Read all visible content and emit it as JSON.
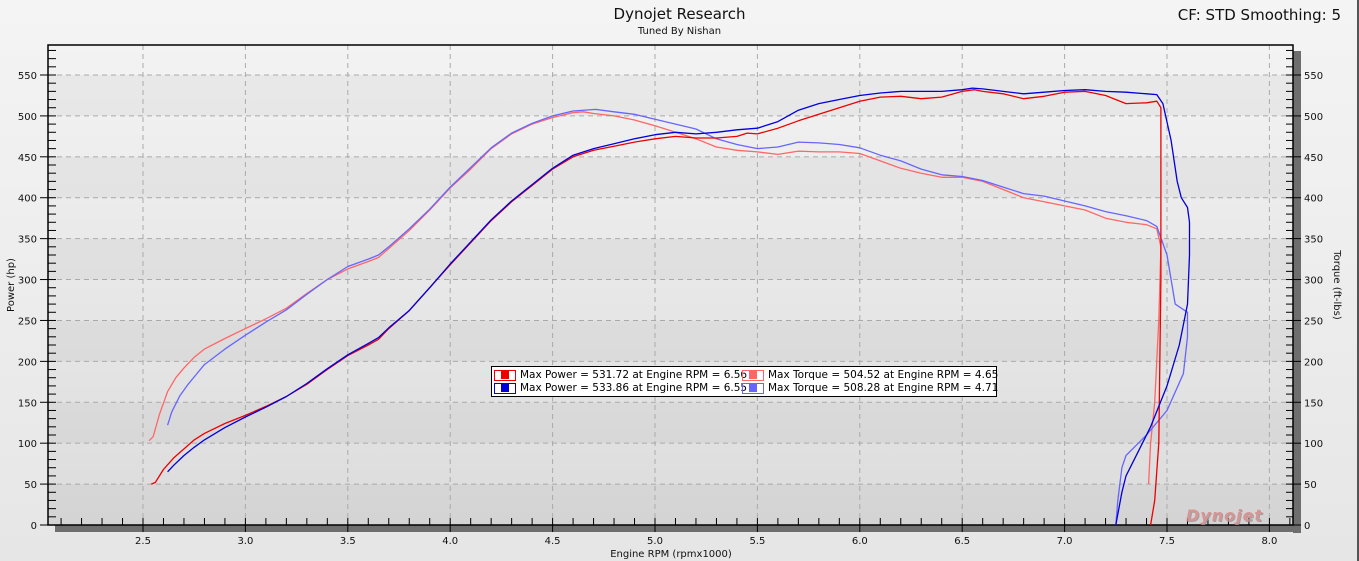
{
  "header": {
    "title": "Dynojet Research",
    "subtitle": "Tuned By Nishan",
    "cf_text": "CF: STD Smoothing: 5"
  },
  "colors": {
    "power_run1": "#ee0000",
    "power_run2": "#0000dd",
    "torque_run1": "#ff6666",
    "torque_run2": "#6666ff",
    "grid": "#aaaaaa",
    "frame_shadow": "#6e6e6e"
  },
  "legend": [
    {
      "label": "Max Power = 531.72 at Engine RPM = 6.56",
      "swatch": "#ee0000",
      "border": "#ee0000"
    },
    {
      "label": "Max Power = 533.86 at Engine RPM = 6.55",
      "swatch": "#0000dd",
      "border": "#0000dd"
    },
    {
      "label": "Max Torque = 504.52 at Engine RPM = 4.65",
      "swatch": "#ff6666",
      "border": "#ff6666"
    },
    {
      "label": "Max Torque = 508.28 at Engine RPM = 4.71",
      "swatch": "#6666ff",
      "border": "#6666ff"
    }
  ],
  "logo": "Dynojet",
  "chart_data": {
    "type": "line",
    "title": "Dynojet Research",
    "subtitle": "Tuned By Nishan",
    "annotation": "CF: STD Smoothing: 5",
    "xlabel": "Engine RPM (rpmx1000)",
    "ylabel": "Power (hp)",
    "y2label": "Torque (ft-lbs)",
    "xlim": [
      2.0,
      8.1
    ],
    "ylim": [
      0,
      580
    ],
    "y2lim": [
      0,
      580
    ],
    "xticks": [
      "2.5",
      "3.0",
      "3.5",
      "4.0",
      "4.5",
      "5.0",
      "5.5",
      "6.0",
      "6.5",
      "7.0",
      "7.5",
      "8.0"
    ],
    "yticks": [
      "0",
      "50",
      "100",
      "150",
      "200",
      "250",
      "300",
      "350",
      "400",
      "450",
      "500",
      "550"
    ],
    "grid": true,
    "legend_position": "center",
    "series": [
      {
        "name": "Max Power = 531.72 at Engine RPM = 6.56",
        "axis": "left",
        "color": "#ee0000",
        "points": [
          [
            2.54,
            50
          ],
          [
            2.56,
            52
          ],
          [
            2.6,
            68
          ],
          [
            2.65,
            82
          ],
          [
            2.7,
            93
          ],
          [
            2.75,
            104
          ],
          [
            2.8,
            112
          ],
          [
            2.9,
            124
          ],
          [
            3.0,
            134
          ],
          [
            3.1,
            145
          ],
          [
            3.2,
            157
          ],
          [
            3.3,
            172
          ],
          [
            3.4,
            190
          ],
          [
            3.5,
            207
          ],
          [
            3.6,
            220
          ],
          [
            3.65,
            227
          ],
          [
            3.7,
            240
          ],
          [
            3.8,
            262
          ],
          [
            3.9,
            290
          ],
          [
            4.0,
            318
          ],
          [
            4.1,
            345
          ],
          [
            4.2,
            372
          ],
          [
            4.3,
            395
          ],
          [
            4.4,
            415
          ],
          [
            4.5,
            435
          ],
          [
            4.6,
            450
          ],
          [
            4.7,
            458
          ],
          [
            4.8,
            463
          ],
          [
            4.9,
            468
          ],
          [
            5.0,
            472
          ],
          [
            5.1,
            475
          ],
          [
            5.2,
            473
          ],
          [
            5.3,
            473
          ],
          [
            5.4,
            475
          ],
          [
            5.45,
            479
          ],
          [
            5.5,
            478
          ],
          [
            5.6,
            485
          ],
          [
            5.7,
            494
          ],
          [
            5.8,
            502
          ],
          [
            5.9,
            510
          ],
          [
            6.0,
            518
          ],
          [
            6.1,
            523
          ],
          [
            6.2,
            524
          ],
          [
            6.3,
            521
          ],
          [
            6.4,
            523
          ],
          [
            6.5,
            530
          ],
          [
            6.56,
            532
          ],
          [
            6.6,
            530
          ],
          [
            6.7,
            527
          ],
          [
            6.8,
            521
          ],
          [
            6.9,
            524
          ],
          [
            7.0,
            529
          ],
          [
            7.1,
            530
          ],
          [
            7.2,
            525
          ],
          [
            7.3,
            515
          ],
          [
            7.4,
            516
          ],
          [
            7.45,
            518
          ],
          [
            7.47,
            510
          ],
          [
            7.47,
            300
          ],
          [
            7.46,
            100
          ],
          [
            7.44,
            30
          ],
          [
            7.42,
            0
          ]
        ]
      },
      {
        "name": "Max Power = 533.86 at Engine RPM = 6.55",
        "axis": "left",
        "color": "#0000dd",
        "points": [
          [
            2.62,
            65
          ],
          [
            2.65,
            73
          ],
          [
            2.7,
            85
          ],
          [
            2.75,
            95
          ],
          [
            2.8,
            104
          ],
          [
            2.9,
            119
          ],
          [
            3.0,
            132
          ],
          [
            3.1,
            144
          ],
          [
            3.2,
            157
          ],
          [
            3.3,
            173
          ],
          [
            3.4,
            191
          ],
          [
            3.5,
            208
          ],
          [
            3.6,
            222
          ],
          [
            3.65,
            229
          ],
          [
            3.7,
            241
          ],
          [
            3.8,
            262
          ],
          [
            3.9,
            290
          ],
          [
            4.0,
            319
          ],
          [
            4.1,
            346
          ],
          [
            4.2,
            373
          ],
          [
            4.3,
            396
          ],
          [
            4.4,
            416
          ],
          [
            4.5,
            436
          ],
          [
            4.6,
            452
          ],
          [
            4.7,
            460
          ],
          [
            4.8,
            466
          ],
          [
            4.9,
            472
          ],
          [
            5.0,
            477
          ],
          [
            5.1,
            480
          ],
          [
            5.2,
            478
          ],
          [
            5.3,
            480
          ],
          [
            5.4,
            483
          ],
          [
            5.5,
            485
          ],
          [
            5.6,
            493
          ],
          [
            5.7,
            507
          ],
          [
            5.8,
            515
          ],
          [
            5.9,
            520
          ],
          [
            6.0,
            525
          ],
          [
            6.1,
            528
          ],
          [
            6.2,
            530
          ],
          [
            6.3,
            530
          ],
          [
            6.4,
            530
          ],
          [
            6.5,
            532
          ],
          [
            6.55,
            534
          ],
          [
            6.6,
            533
          ],
          [
            6.7,
            530
          ],
          [
            6.8,
            527
          ],
          [
            6.9,
            529
          ],
          [
            7.0,
            531
          ],
          [
            7.1,
            532
          ],
          [
            7.2,
            530
          ],
          [
            7.3,
            529
          ],
          [
            7.4,
            527
          ],
          [
            7.45,
            526
          ],
          [
            7.48,
            515
          ],
          [
            7.52,
            470
          ],
          [
            7.55,
            420
          ],
          [
            7.57,
            400
          ],
          [
            7.6,
            388
          ],
          [
            7.61,
            370
          ],
          [
            7.61,
            330
          ],
          [
            7.6,
            270
          ],
          [
            7.56,
            220
          ],
          [
            7.5,
            170
          ],
          [
            7.42,
            120
          ],
          [
            7.36,
            90
          ],
          [
            7.3,
            60
          ],
          [
            7.28,
            40
          ],
          [
            7.25,
            0
          ]
        ]
      },
      {
        "name": "Max Torque = 504.52 at Engine RPM = 4.65",
        "axis": "right",
        "color": "#ff6666",
        "points": [
          [
            2.53,
            103
          ],
          [
            2.55,
            108
          ],
          [
            2.58,
            135
          ],
          [
            2.62,
            163
          ],
          [
            2.66,
            180
          ],
          [
            2.7,
            192
          ],
          [
            2.75,
            205
          ],
          [
            2.8,
            215
          ],
          [
            2.9,
            228
          ],
          [
            3.0,
            240
          ],
          [
            3.1,
            252
          ],
          [
            3.2,
            265
          ],
          [
            3.3,
            283
          ],
          [
            3.4,
            300
          ],
          [
            3.5,
            313
          ],
          [
            3.6,
            322
          ],
          [
            3.65,
            327
          ],
          [
            3.7,
            338
          ],
          [
            3.8,
            360
          ],
          [
            3.9,
            385
          ],
          [
            4.0,
            412
          ],
          [
            4.1,
            435
          ],
          [
            4.2,
            460
          ],
          [
            4.3,
            478
          ],
          [
            4.4,
            490
          ],
          [
            4.5,
            498
          ],
          [
            4.6,
            504
          ],
          [
            4.65,
            505
          ],
          [
            4.7,
            503
          ],
          [
            4.8,
            500
          ],
          [
            4.9,
            495
          ],
          [
            5.0,
            488
          ],
          [
            5.1,
            480
          ],
          [
            5.2,
            472
          ],
          [
            5.3,
            462
          ],
          [
            5.4,
            458
          ],
          [
            5.5,
            456
          ],
          [
            5.6,
            453
          ],
          [
            5.7,
            457
          ],
          [
            5.8,
            456
          ],
          [
            5.9,
            456
          ],
          [
            6.0,
            454
          ],
          [
            6.1,
            445
          ],
          [
            6.2,
            436
          ],
          [
            6.3,
            430
          ],
          [
            6.4,
            425
          ],
          [
            6.5,
            425
          ],
          [
            6.6,
            420
          ],
          [
            6.7,
            410
          ],
          [
            6.8,
            400
          ],
          [
            6.9,
            395
          ],
          [
            7.0,
            390
          ],
          [
            7.1,
            385
          ],
          [
            7.2,
            375
          ],
          [
            7.3,
            370
          ],
          [
            7.4,
            367
          ],
          [
            7.45,
            362
          ],
          [
            7.47,
            340
          ],
          [
            7.46,
            250
          ],
          [
            7.44,
            150
          ],
          [
            7.42,
            100
          ],
          [
            7.41,
            50
          ]
        ]
      },
      {
        "name": "Max Torque = 508.28 at Engine RPM = 4.71",
        "axis": "right",
        "color": "#6666ff",
        "points": [
          [
            2.62,
            122
          ],
          [
            2.64,
            138
          ],
          [
            2.68,
            158
          ],
          [
            2.72,
            172
          ],
          [
            2.76,
            184
          ],
          [
            2.8,
            196
          ],
          [
            2.9,
            215
          ],
          [
            3.0,
            232
          ],
          [
            3.1,
            248
          ],
          [
            3.2,
            263
          ],
          [
            3.3,
            282
          ],
          [
            3.4,
            300
          ],
          [
            3.5,
            316
          ],
          [
            3.6,
            325
          ],
          [
            3.65,
            330
          ],
          [
            3.7,
            340
          ],
          [
            3.8,
            362
          ],
          [
            3.9,
            386
          ],
          [
            4.0,
            413
          ],
          [
            4.1,
            437
          ],
          [
            4.2,
            461
          ],
          [
            4.3,
            479
          ],
          [
            4.4,
            491
          ],
          [
            4.5,
            500
          ],
          [
            4.6,
            506
          ],
          [
            4.71,
            508
          ],
          [
            4.8,
            505
          ],
          [
            4.9,
            502
          ],
          [
            5.0,
            496
          ],
          [
            5.1,
            490
          ],
          [
            5.2,
            484
          ],
          [
            5.3,
            472
          ],
          [
            5.4,
            465
          ],
          [
            5.5,
            460
          ],
          [
            5.6,
            462
          ],
          [
            5.7,
            468
          ],
          [
            5.8,
            467
          ],
          [
            5.9,
            465
          ],
          [
            6.0,
            461
          ],
          [
            6.1,
            452
          ],
          [
            6.2,
            445
          ],
          [
            6.3,
            435
          ],
          [
            6.4,
            428
          ],
          [
            6.5,
            426
          ],
          [
            6.6,
            421
          ],
          [
            6.7,
            413
          ],
          [
            6.8,
            405
          ],
          [
            6.9,
            402
          ],
          [
            7.0,
            396
          ],
          [
            7.1,
            390
          ],
          [
            7.2,
            383
          ],
          [
            7.3,
            378
          ],
          [
            7.4,
            372
          ],
          [
            7.45,
            365
          ],
          [
            7.5,
            330
          ],
          [
            7.54,
            270
          ],
          [
            7.57,
            265
          ],
          [
            7.6,
            260
          ],
          [
            7.6,
            230
          ],
          [
            7.58,
            185
          ],
          [
            7.5,
            140
          ],
          [
            7.4,
            110
          ],
          [
            7.3,
            85
          ],
          [
            7.28,
            70
          ],
          [
            7.26,
            30
          ],
          [
            7.25,
            0
          ]
        ]
      }
    ]
  }
}
